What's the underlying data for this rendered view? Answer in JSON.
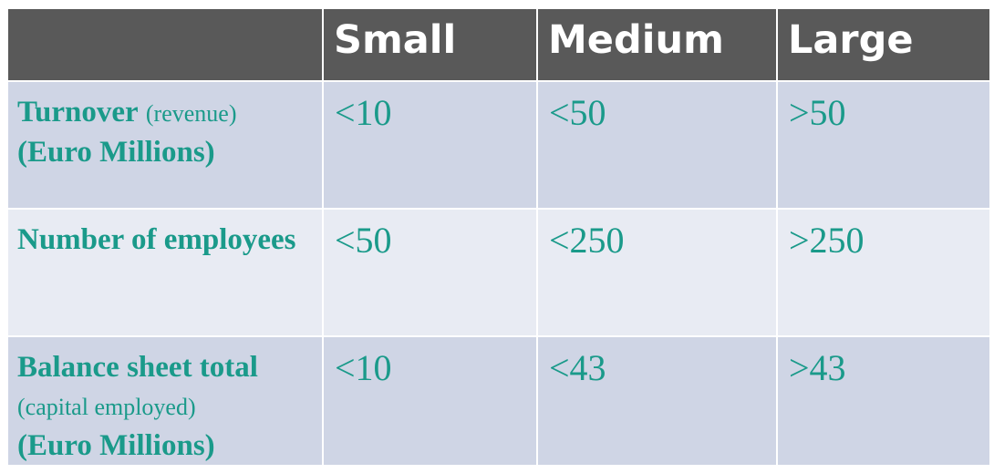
{
  "headers": [
    "",
    "Small",
    "Medium",
    "Large"
  ],
  "rows": [
    {
      "label_main": "Turnover",
      "label_paren": "(revenue)",
      "label_unit": "(Euro Millions)",
      "values": [
        "<10",
        "<50",
        ">50"
      ]
    },
    {
      "label_main": "Number of employees",
      "values": [
        "<50",
        "<250",
        ">250"
      ]
    },
    {
      "label_main": "Balance sheet total",
      "label_paren": "(capital employed)",
      "label_unit": "(Euro Millions)",
      "values": [
        "<10",
        "<43",
        ">43"
      ]
    }
  ],
  "colors": {
    "header_bg": "#595959",
    "header_text": "#ffffff",
    "row_odd_bg": "#cfd5e5",
    "row_even_bg": "#e8ebf3",
    "accent_text": "#1a9a8a"
  }
}
